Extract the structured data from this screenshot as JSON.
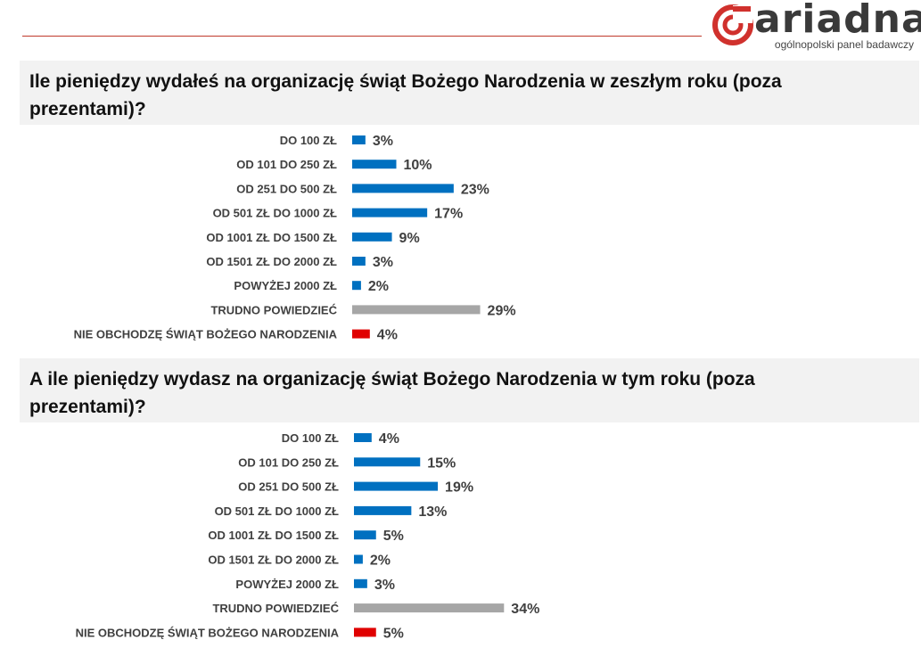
{
  "brand": {
    "name": "ariadna",
    "tagline": "ogólnopolski panel badawczy",
    "red": "#d0312d",
    "dark": "#3a3a3a"
  },
  "colors": {
    "blue": "#0070c0",
    "gray": "#a6a6a6",
    "red": "#e00000"
  },
  "chart_data": [
    {
      "type": "bar",
      "orientation": "horizontal",
      "title": "Ile pieniędzy wydałeś na organizację świąt Bożego Narodzenia w zeszłym roku (poza prezentami)?",
      "categories": [
        "DO 100 ZŁ",
        "OD 101 DO 250 ZŁ",
        "OD 251 DO 500 ZŁ",
        "OD 501 ZŁ DO 1000 ZŁ",
        "OD 1001 ZŁ DO 1500 ZŁ",
        "OD 1501 ZŁ DO 2000 ZŁ",
        "POWYŻEJ 2000 ZŁ",
        "TRUDNO POWIEDZIEĆ",
        "NIE OBCHODZĘ ŚWIĄT BOŻEGO NARODZENIA"
      ],
      "values": [
        3,
        10,
        23,
        17,
        9,
        3,
        2,
        29,
        4
      ],
      "value_labels": [
        "3%",
        "10%",
        "23%",
        "17%",
        "9%",
        "3%",
        "2%",
        "29%",
        "4%"
      ],
      "bar_colors": [
        "blue",
        "blue",
        "blue",
        "blue",
        "blue",
        "blue",
        "blue",
        "gray",
        "red"
      ],
      "unit": "%"
    },
    {
      "type": "bar",
      "orientation": "horizontal",
      "title": "A ile pieniędzy wydasz na organizację świąt Bożego Narodzenia w tym roku (poza prezentami)?",
      "categories": [
        "DO 100 ZŁ",
        "OD 101 DO 250 ZŁ",
        "OD 251 DO 500 ZŁ",
        "OD 501 ZŁ DO 1000 ZŁ",
        "OD 1001 ZŁ DO 1500 ZŁ",
        "OD 1501 ZŁ DO 2000 ZŁ",
        "POWYŻEJ 2000 ZŁ",
        "TRUDNO POWIEDZIEĆ",
        "NIE OBCHODZĘ ŚWIĄT BOŻEGO NARODZENIA"
      ],
      "values": [
        4,
        15,
        19,
        13,
        5,
        2,
        3,
        34,
        5
      ],
      "value_labels": [
        "4%",
        "15%",
        "19%",
        "13%",
        "5%",
        "2%",
        "3%",
        "34%",
        "5%"
      ],
      "bar_colors": [
        "blue",
        "blue",
        "blue",
        "blue",
        "blue",
        "blue",
        "blue",
        "gray",
        "red"
      ],
      "unit": "%"
    }
  ]
}
